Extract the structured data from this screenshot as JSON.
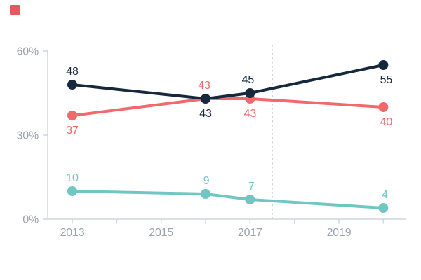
{
  "brand": {
    "mark": "red-square-logo",
    "mark_color": "#e8585c"
  },
  "colors": {
    "background": "#ffffff",
    "axis_line": "#cfd5dc",
    "axis_label": "#9aa2ae",
    "reference_line": "#cdd4db"
  },
  "chart_data": {
    "type": "line",
    "title": "",
    "xlabel": "",
    "ylabel": "",
    "x": [
      2013,
      2016,
      2017,
      2020
    ],
    "series": [
      {
        "name": "red-series",
        "color": "#f2696c",
        "values": [
          37,
          43,
          43,
          40
        ],
        "labels": [
          "37",
          "43",
          "43",
          "40"
        ],
        "label_side": [
          "below",
          "above",
          "below",
          "below"
        ],
        "label_dx": [
          0,
          -2,
          0,
          4
        ]
      },
      {
        "name": "navy-series",
        "color": "#16283c",
        "values": [
          48,
          43,
          45,
          55
        ],
        "labels": [
          "48",
          "43",
          "45",
          "55"
        ],
        "label_side": [
          "above",
          "below",
          "above",
          "below"
        ],
        "label_dx": [
          0,
          0,
          -3,
          4
        ]
      },
      {
        "name": "teal-series",
        "color": "#70c6c2",
        "values": [
          10,
          9,
          7,
          4
        ],
        "labels": [
          "10",
          "9",
          "7",
          "4"
        ],
        "label_side": [
          "above",
          "above",
          "above",
          "above"
        ],
        "label_dx": [
          0,
          1,
          2,
          2
        ]
      }
    ],
    "x_axis": {
      "range": [
        2013,
        2020
      ],
      "ticks": [
        2013,
        2014,
        2015,
        2016,
        2017,
        2018,
        2019,
        2020
      ],
      "labeled_ticks": [
        2013,
        2015,
        2017,
        2019
      ],
      "tick_labels": [
        "2013",
        "2015",
        "2017",
        "2019"
      ]
    },
    "y_axis": {
      "range": [
        0,
        60
      ],
      "ticks": [
        0,
        30,
        60
      ],
      "tick_labels": [
        "0%",
        "30%",
        "60%"
      ]
    },
    "annotation_line": {
      "x": 2017.5,
      "style": "dotted"
    },
    "grid": false,
    "legend": false
  }
}
